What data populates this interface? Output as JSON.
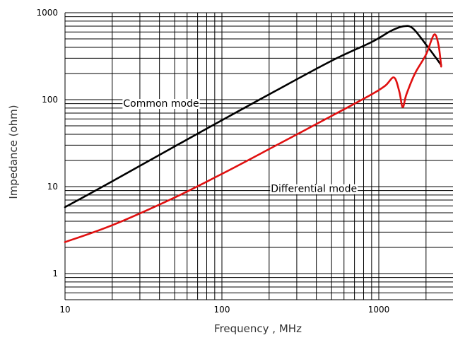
{
  "chart_data": {
    "type": "line",
    "title": "",
    "xlabel": "Frequency , MHz",
    "ylabel": "Impedance (ohm)",
    "x_scale": "log",
    "y_scale": "log",
    "xlim": [
      10,
      2500
    ],
    "ylim": [
      0.5,
      1000
    ],
    "x_ticks": [
      "10",
      "100",
      "1000"
    ],
    "y_ticks": [
      "1",
      "10",
      "100",
      "1000"
    ],
    "grid": true,
    "series": [
      {
        "color": "#000000",
        "x": [
          10,
          20,
          50,
          100,
          200,
          500,
          900,
          1200,
          1450,
          1650,
          2000,
          2500
        ],
        "values": [
          5.8,
          11.5,
          29,
          58,
          115,
          280,
          460,
          620,
          700,
          660,
          430,
          250
        ]
      },
      {
        "color": "#e01010",
        "x": [
          10,
          20,
          50,
          100,
          200,
          500,
          900,
          1100,
          1250,
          1350,
          1420,
          1500,
          1700,
          2000,
          2250,
          2400,
          2500
        ],
        "values": [
          2.3,
          3.6,
          7.5,
          14,
          27,
          65,
          115,
          145,
          180,
          125,
          82,
          115,
          200,
          330,
          560,
          430,
          240
        ]
      }
    ],
    "annotations": [
      {
        "text": "Common mode",
        "x": 23.5,
        "y": 91
      },
      {
        "text": "Differential mode",
        "x": 205,
        "y": 9.5
      }
    ]
  }
}
